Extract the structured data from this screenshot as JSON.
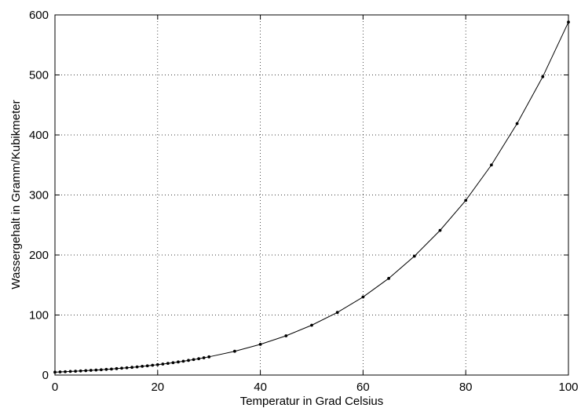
{
  "chart_data": {
    "type": "line",
    "title": "",
    "xlabel": "Temperatur in Grad Celsius",
    "ylabel": "Wassergehalt in Gramm/Kubikmeter",
    "xlim": [
      0,
      100
    ],
    "ylim": [
      0,
      600
    ],
    "xticks": [
      0,
      20,
      40,
      60,
      80,
      100
    ],
    "yticks": [
      0,
      100,
      200,
      300,
      400,
      500,
      600
    ],
    "grid": true,
    "grid_style": "dotted",
    "legend": "none",
    "line_color": "#000000",
    "marker": "point",
    "series": [
      {
        "x": [
          0,
          1,
          2,
          3,
          4,
          5,
          6,
          7,
          8,
          9,
          10,
          11,
          12,
          13,
          14,
          15,
          16,
          17,
          18,
          19,
          20,
          21,
          22,
          23,
          24,
          25,
          26,
          27,
          28,
          29,
          30,
          35,
          40,
          45,
          50,
          55,
          60,
          65,
          70,
          75,
          80,
          85,
          90,
          95,
          100
        ],
        "y": [
          4.8,
          5.2,
          5.6,
          6.0,
          6.4,
          6.8,
          7.3,
          7.8,
          8.3,
          8.8,
          9.4,
          10.0,
          10.7,
          11.4,
          12.1,
          12.8,
          13.6,
          14.5,
          15.4,
          16.3,
          17.3,
          18.3,
          19.4,
          20.6,
          21.8,
          23.0,
          24.4,
          25.8,
          27.2,
          28.7,
          30.3,
          39.6,
          51.1,
          65.4,
          83.0,
          104.3,
          130.0,
          161.0,
          198.0,
          241.0,
          291.0,
          350.0,
          419.0,
          497.0,
          588.0
        ]
      }
    ]
  }
}
